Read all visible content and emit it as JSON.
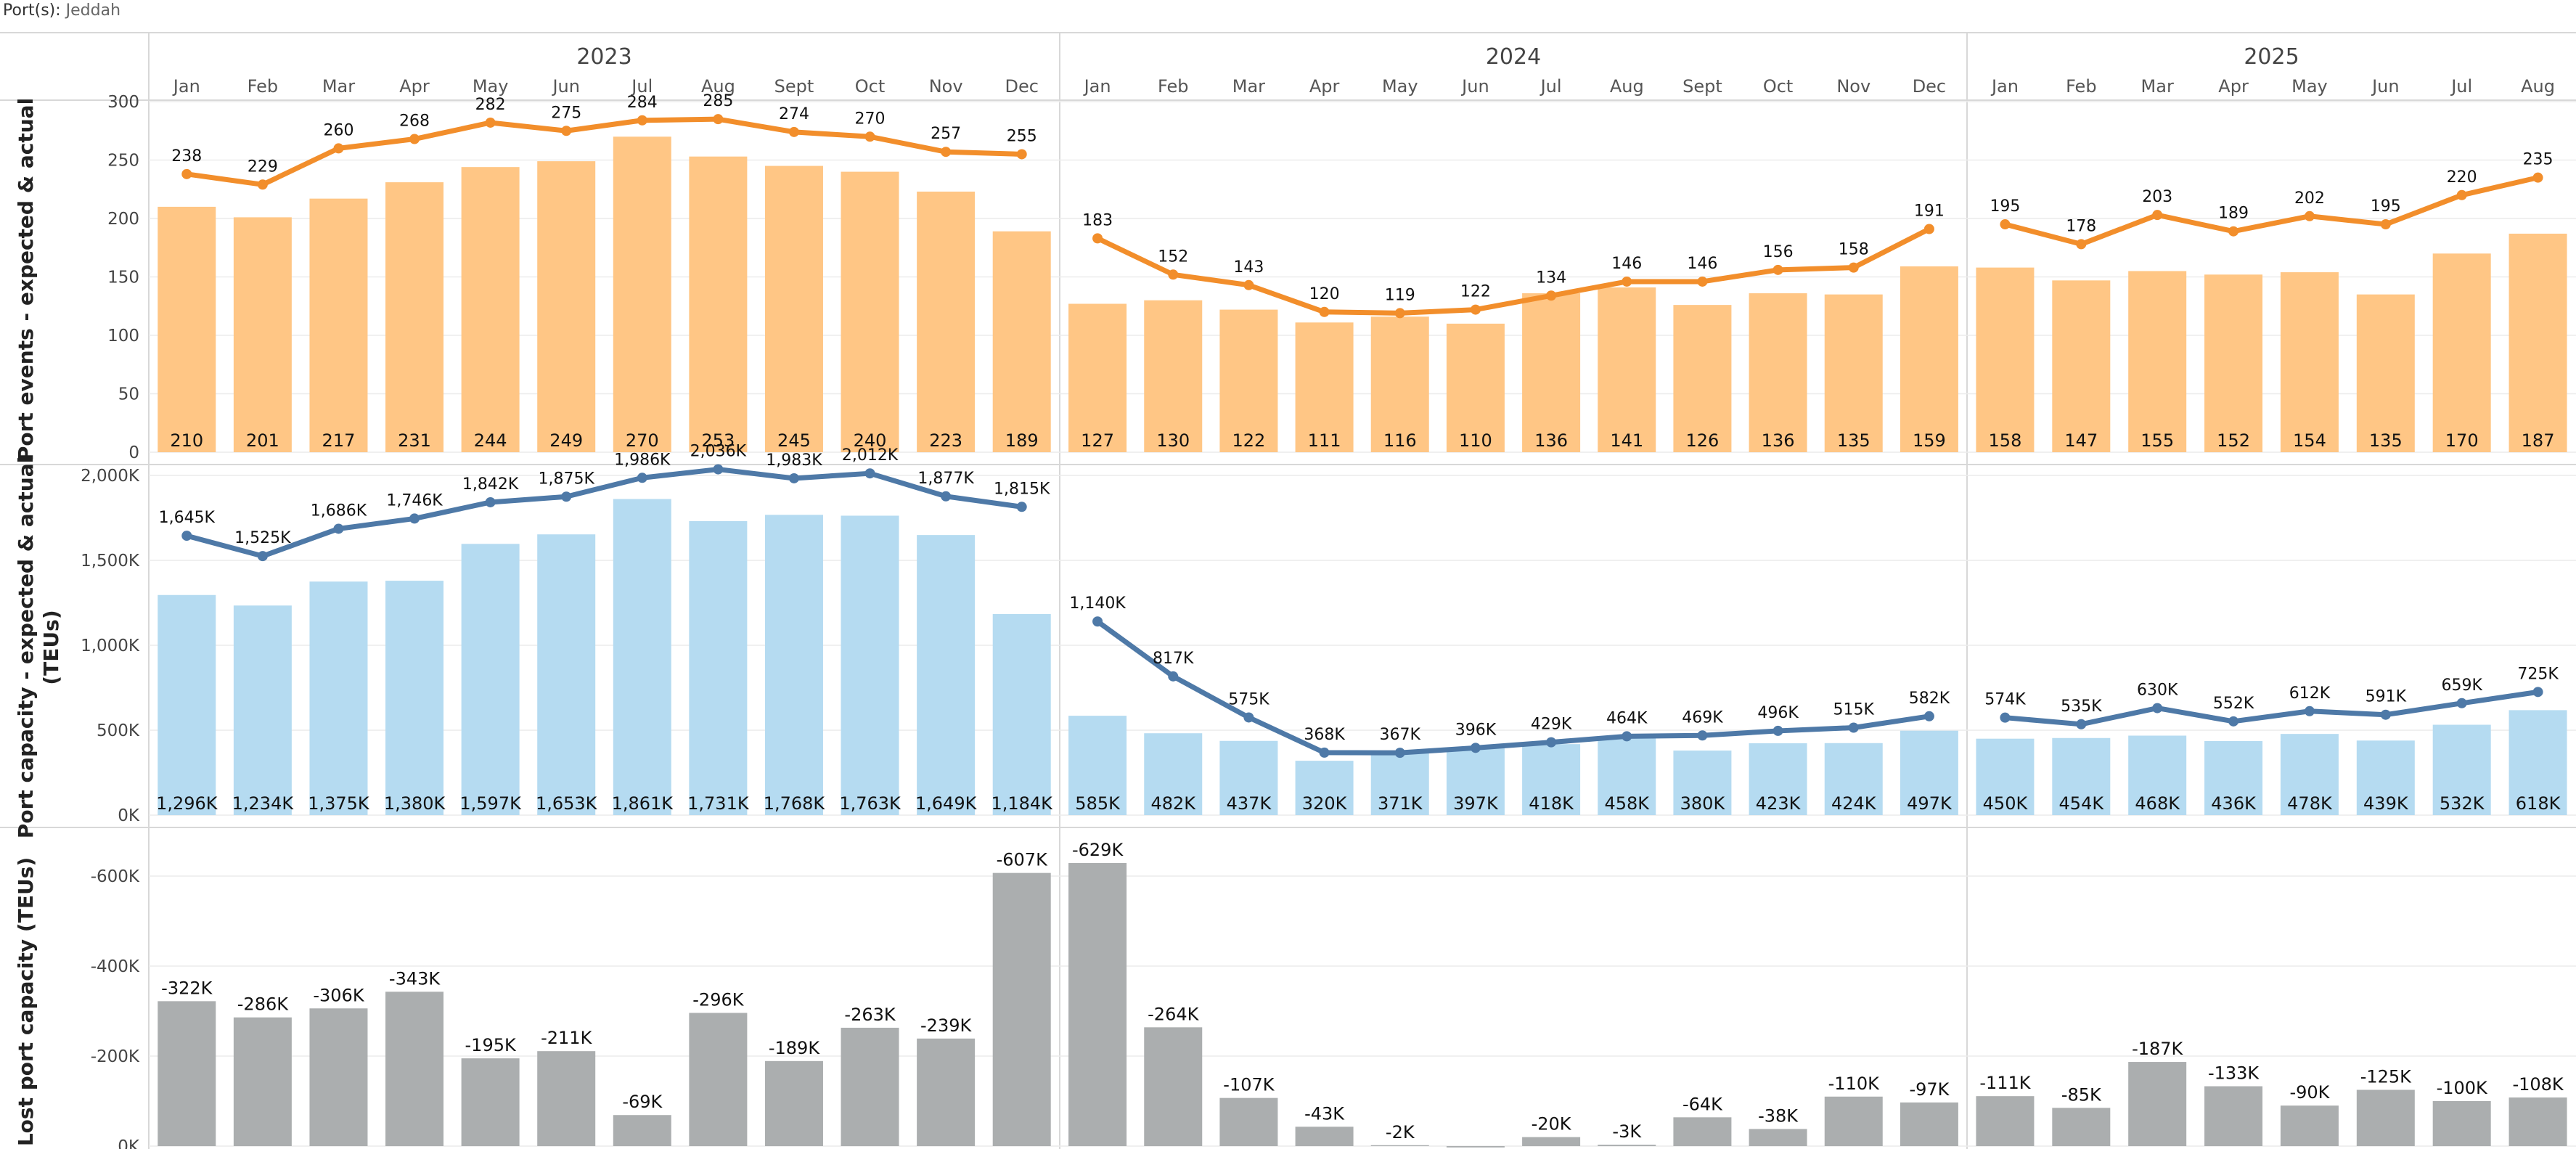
{
  "filter": {
    "label": "Port(s):",
    "value": "Jeddah"
  },
  "colors": {
    "events_bar": "#FFC685",
    "events_line": "#F28E2B",
    "capacity_bar": "#B5DBF1",
    "capacity_line": "#4E79A7",
    "lost_bar": "#ABAEAF",
    "grid": "#ECECEC",
    "divider": "#D8D8D8"
  },
  "chart_data": [
    {
      "type": "bar",
      "id": "port-events",
      "ylabel": "Port events - expected & actual",
      "ylim": [
        0,
        300
      ],
      "yticks": [
        0,
        50,
        100,
        150,
        200,
        250,
        300
      ],
      "ytick_labels": [
        "0",
        "50",
        "100",
        "150",
        "200",
        "250",
        "300"
      ],
      "years": [
        {
          "label": "2023",
          "months": [
            "Jan",
            "Feb",
            "Mar",
            "Apr",
            "May",
            "Jun",
            "Jul",
            "Aug",
            "Sept",
            "Oct",
            "Nov",
            "Dec"
          ]
        },
        {
          "label": "2024",
          "months": [
            "Jan",
            "Feb",
            "Mar",
            "Apr",
            "May",
            "Jun",
            "Jul",
            "Aug",
            "Sept",
            "Oct",
            "Nov",
            "Dec"
          ]
        },
        {
          "label": "2025",
          "months": [
            "Jan",
            "Feb",
            "Mar",
            "Apr",
            "May",
            "Jun",
            "Jul",
            "Aug"
          ]
        }
      ],
      "series": [
        {
          "name": "actual",
          "kind": "bar",
          "values": [
            210,
            201,
            217,
            231,
            244,
            249,
            270,
            253,
            245,
            240,
            223,
            189,
            127,
            130,
            122,
            111,
            116,
            110,
            136,
            141,
            126,
            136,
            135,
            159,
            158,
            147,
            155,
            152,
            154,
            135,
            170,
            187
          ],
          "labels": [
            "210",
            "201",
            "217",
            "231",
            "244",
            "249",
            "270",
            "253",
            "245",
            "240",
            "223",
            "189",
            "127",
            "130",
            "122",
            "111",
            "116",
            "110",
            "136",
            "141",
            "126",
            "136",
            "135",
            "159",
            "158",
            "147",
            "155",
            "152",
            "154",
            "135",
            "170",
            "187"
          ]
        },
        {
          "name": "expected",
          "kind": "line",
          "values": [
            238,
            229,
            260,
            268,
            282,
            275,
            284,
            285,
            274,
            270,
            257,
            255,
            183,
            152,
            143,
            120,
            119,
            122,
            134,
            146,
            146,
            156,
            158,
            191,
            195,
            178,
            203,
            189,
            202,
            195,
            220,
            235
          ],
          "labels": [
            "238",
            "229",
            "260",
            "268",
            "282",
            "275",
            "284",
            "285",
            "274",
            "270",
            "257",
            "255",
            "183",
            "152",
            "143",
            "120",
            "119",
            "122",
            "134",
            "146",
            "146",
            "156",
            "158",
            "191",
            "195",
            "178",
            "203",
            "189",
            "202",
            "195",
            "220",
            "235"
          ]
        }
      ]
    },
    {
      "type": "bar",
      "id": "port-capacity",
      "ylabel_lines": [
        "Port capacity - expected & actual",
        "(TEUs)"
      ],
      "ylim": [
        0,
        2000
      ],
      "yticks": [
        0,
        500,
        1000,
        1500,
        2000
      ],
      "ytick_labels": [
        "0K",
        "500K",
        "1,000K",
        "1,500K",
        "2,000K"
      ],
      "series": [
        {
          "name": "actual",
          "kind": "bar",
          "values": [
            1296,
            1234,
            1375,
            1380,
            1597,
            1653,
            1861,
            1731,
            1768,
            1763,
            1649,
            1184,
            585,
            482,
            437,
            320,
            371,
            397,
            418,
            458,
            380,
            423,
            424,
            497,
            450,
            454,
            468,
            436,
            478,
            439,
            532,
            618
          ],
          "labels": [
            "1,296K",
            "1,234K",
            "1,375K",
            "1,380K",
            "1,597K",
            "1,653K",
            "1,861K",
            "1,731K",
            "1,768K",
            "1,763K",
            "1,649K",
            "1,184K",
            "585K",
            "482K",
            "437K",
            "320K",
            "371K",
            "397K",
            "418K",
            "458K",
            "380K",
            "423K",
            "424K",
            "497K",
            "450K",
            "454K",
            "468K",
            "436K",
            "478K",
            "439K",
            "532K",
            "618K"
          ]
        },
        {
          "name": "expected",
          "kind": "line",
          "values": [
            1645,
            1525,
            1686,
            1746,
            1842,
            1875,
            1986,
            2036,
            1983,
            2012,
            1877,
            1815,
            1140,
            817,
            575,
            368,
            367,
            396,
            429,
            464,
            469,
            496,
            515,
            582,
            574,
            535,
            630,
            552,
            612,
            591,
            659,
            725
          ],
          "labels": [
            "1,645K",
            "1,525K",
            "1,686K",
            "1,746K",
            "1,842K",
            "1,875K",
            "1,986K",
            "2,036K",
            "1,983K",
            "2,012K",
            "1,877K",
            "1,815K",
            "1,140K",
            "817K",
            "575K",
            "368K",
            "367K",
            "396K",
            "429K",
            "464K",
            "469K",
            "496K",
            "515K",
            "582K",
            "574K",
            "535K",
            "630K",
            "552K",
            "612K",
            "591K",
            "659K",
            "725K"
          ]
        }
      ]
    },
    {
      "type": "bar",
      "id": "lost-capacity",
      "ylabel": "Lost port capacity (TEUs)",
      "ylim": [
        0,
        -700
      ],
      "yticks": [
        0,
        -200,
        -400,
        -600
      ],
      "ytick_labels": [
        "0K",
        "-200K",
        "-400K",
        "-600K"
      ],
      "series": [
        {
          "name": "lost",
          "kind": "bar",
          "values": [
            -322,
            -286,
            -306,
            -343,
            -195,
            -211,
            -69,
            -296,
            -189,
            -263,
            -239,
            -607,
            -629,
            -264,
            -107,
            -43,
            -2,
            3,
            -20,
            -3,
            -64,
            -38,
            -110,
            -97,
            -111,
            -85,
            -187,
            -133,
            -90,
            -125,
            -100,
            -108
          ],
          "labels": [
            "-322K",
            "-286K",
            "-306K",
            "-343K",
            "-195K",
            "-211K",
            "-69K",
            "-296K",
            "-189K",
            "-263K",
            "-239K",
            "-607K",
            "-629K",
            "-264K",
            "-107K",
            "-43K",
            "-2K",
            "",
            "-20K",
            "-3K",
            "-64K",
            "-38K",
            "-110K",
            "-97K",
            "-111K",
            "-85K",
            "-187K",
            "-133K",
            "-90K",
            "-125K",
            "-100K",
            "-108K"
          ]
        }
      ]
    }
  ]
}
